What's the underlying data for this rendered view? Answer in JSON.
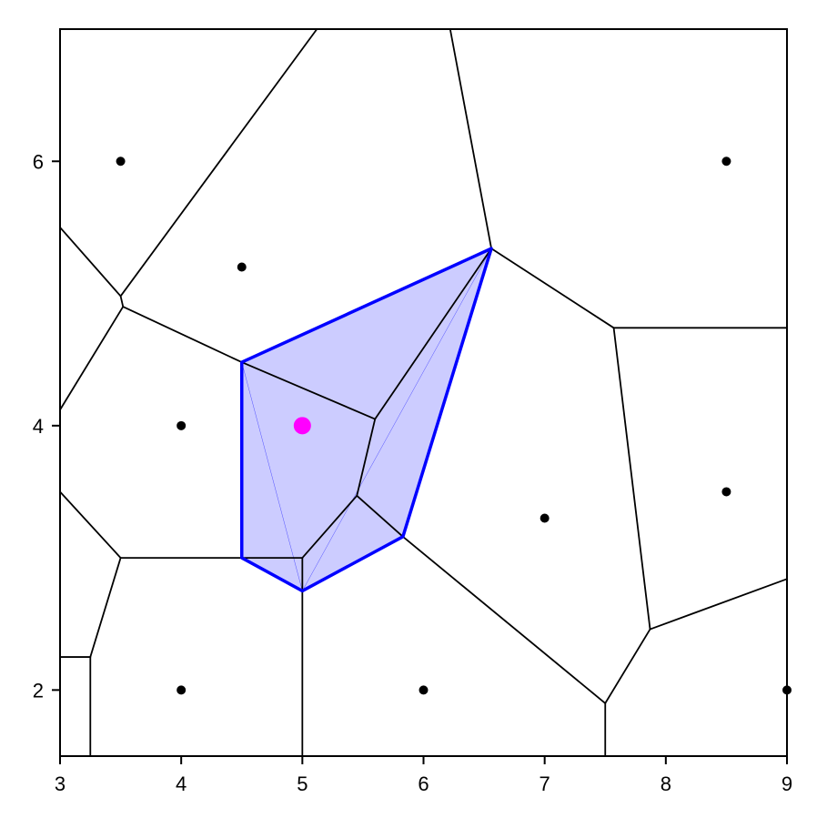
{
  "chart_data": {
    "type": "scatter",
    "title": "",
    "xlabel": "",
    "ylabel": "",
    "xlim": [
      3,
      9
    ],
    "ylim": [
      1.5,
      7
    ],
    "x_ticks": [
      "3",
      "4",
      "5",
      "6",
      "7",
      "8",
      "9"
    ],
    "y_ticks": [
      "2",
      "4",
      "6"
    ],
    "grid": false,
    "colors": {
      "site_point": "#000000",
      "query_point": "#ff00ff",
      "edges": "#000000",
      "highlight_stroke": "#0000ff",
      "highlight_fill": "#ccccff"
    },
    "sites": [
      {
        "x": 3.5,
        "y": 6.0
      },
      {
        "x": 8.5,
        "y": 6.0
      },
      {
        "x": 4.5,
        "y": 5.2
      },
      {
        "x": 4.0,
        "y": 4.0
      },
      {
        "x": 8.5,
        "y": 3.5
      },
      {
        "x": 7.0,
        "y": 3.3
      },
      {
        "x": 4.0,
        "y": 2.0
      },
      {
        "x": 6.0,
        "y": 2.0
      },
      {
        "x": 9.0,
        "y": 2.0
      }
    ],
    "query_point": {
      "x": 5.0,
      "y": 4.0
    },
    "highlighted_region": [
      [
        4.5,
        4.48
      ],
      [
        6.56,
        5.34
      ],
      [
        5.83,
        3.16
      ],
      [
        5.0,
        2.75
      ],
      [
        4.5,
        3.0
      ]
    ],
    "highlighted_inner_edges": [
      [
        [
          4.5,
          4.48
        ],
        [
          5.0,
          2.75
        ]
      ],
      [
        [
          6.56,
          5.34
        ],
        [
          5.0,
          2.75
        ]
      ]
    ],
    "edges": [
      [
        [
          5.12,
          7.0
        ],
        [
          3.5,
          4.98
        ]
      ],
      [
        [
          3.0,
          5.5
        ],
        [
          3.5,
          4.98
        ]
      ],
      [
        [
          3.5,
          4.98
        ],
        [
          3.52,
          4.9
        ]
      ],
      [
        [
          3.52,
          4.9
        ],
        [
          3.0,
          4.12
        ]
      ],
      [
        [
          3.52,
          4.9
        ],
        [
          4.5,
          4.48
        ]
      ],
      [
        [
          4.5,
          4.48
        ],
        [
          5.6,
          4.05
        ]
      ],
      [
        [
          5.6,
          4.05
        ],
        [
          6.56,
          5.34
        ]
      ],
      [
        [
          5.6,
          4.05
        ],
        [
          5.45,
          3.47
        ]
      ],
      [
        [
          5.45,
          3.47
        ],
        [
          5.83,
          3.16
        ]
      ],
      [
        [
          5.45,
          3.47
        ],
        [
          5.0,
          3.0
        ]
      ],
      [
        [
          4.5,
          3.0
        ],
        [
          5.0,
          3.0
        ]
      ],
      [
        [
          5.0,
          3.0
        ],
        [
          5.0,
          2.75
        ]
      ],
      [
        [
          5.0,
          2.75
        ],
        [
          5.0,
          1.5
        ]
      ],
      [
        [
          6.22,
          7.0
        ],
        [
          6.56,
          5.34
        ]
      ],
      [
        [
          6.56,
          5.34
        ],
        [
          7.57,
          4.74
        ]
      ],
      [
        [
          7.57,
          4.74
        ],
        [
          9.0,
          4.74
        ]
      ],
      [
        [
          7.57,
          4.74
        ],
        [
          7.87,
          2.46
        ]
      ],
      [
        [
          7.87,
          2.46
        ],
        [
          9.0,
          2.84
        ]
      ],
      [
        [
          7.87,
          2.46
        ],
        [
          7.5,
          1.9
        ]
      ],
      [
        [
          5.83,
          3.16
        ],
        [
          7.5,
          1.9
        ]
      ],
      [
        [
          7.5,
          1.9
        ],
        [
          7.5,
          1.5
        ]
      ],
      [
        [
          3.0,
          3.5
        ],
        [
          3.5,
          3.0
        ]
      ],
      [
        [
          3.5,
          3.0
        ],
        [
          4.5,
          3.0
        ]
      ],
      [
        [
          3.5,
          3.0
        ],
        [
          3.25,
          2.25
        ]
      ],
      [
        [
          3.0,
          2.25
        ],
        [
          3.25,
          2.25
        ]
      ],
      [
        [
          3.25,
          2.25
        ],
        [
          3.25,
          1.5
        ]
      ]
    ]
  }
}
